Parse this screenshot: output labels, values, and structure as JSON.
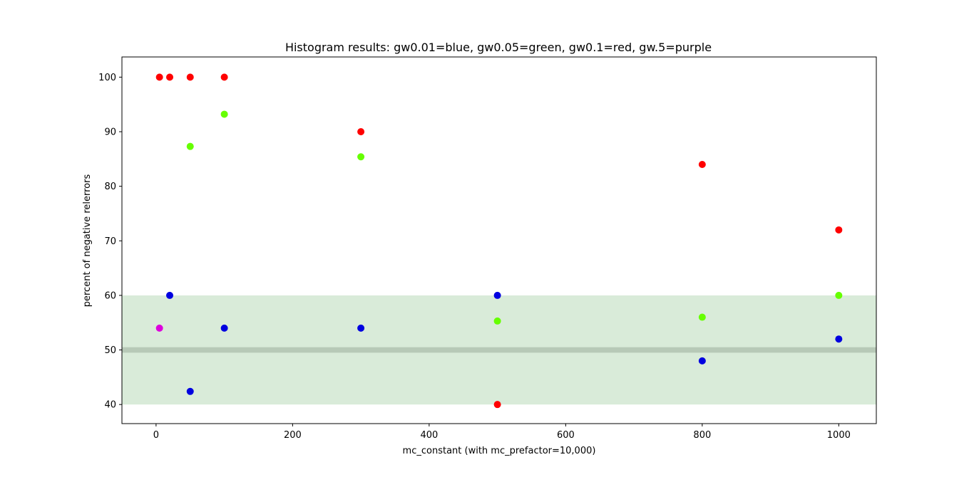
{
  "chart_data": {
    "type": "scatter",
    "title": "Histogram results: gw0.01=blue, gw0.05=green, gw0.1=red, gw.5=purple",
    "xlabel": "mc_constant (with mc_prefactor=10,000)",
    "ylabel": "percent of negative relerrors",
    "xlim": [
      -50,
      1055
    ],
    "ylim": [
      36.5,
      103.7
    ],
    "xticks": [
      0,
      200,
      400,
      600,
      800,
      1000
    ],
    "yticks": [
      40,
      50,
      60,
      70,
      80,
      90,
      100
    ],
    "grid": false,
    "legend": "none",
    "bands": [
      {
        "y0": 40,
        "y1": 60,
        "color": "#d9ebd9"
      },
      {
        "y0": 49.5,
        "y1": 50.5,
        "color": "#b7c9b7"
      }
    ],
    "series": [
      {
        "color": "#0000e0",
        "points": [
          [
            20,
            60
          ],
          [
            50,
            42.4
          ],
          [
            100,
            54
          ],
          [
            300,
            54
          ],
          [
            500,
            60
          ],
          [
            800,
            48
          ],
          [
            1000,
            52
          ]
        ]
      },
      {
        "color": "#66ff00",
        "points": [
          [
            50,
            87.3
          ],
          [
            100,
            93.2
          ],
          [
            300,
            85.4
          ],
          [
            500,
            55.3
          ],
          [
            800,
            56
          ],
          [
            1000,
            60
          ]
        ]
      },
      {
        "color": "#ff0000",
        "points": [
          [
            5,
            100
          ],
          [
            20,
            100
          ],
          [
            50,
            100
          ],
          [
            100,
            100
          ],
          [
            300,
            90
          ],
          [
            500,
            40
          ],
          [
            800,
            84
          ],
          [
            1000,
            72
          ]
        ]
      },
      {
        "color": "#dd00dd",
        "points": [
          [
            5,
            54
          ]
        ]
      }
    ]
  }
}
